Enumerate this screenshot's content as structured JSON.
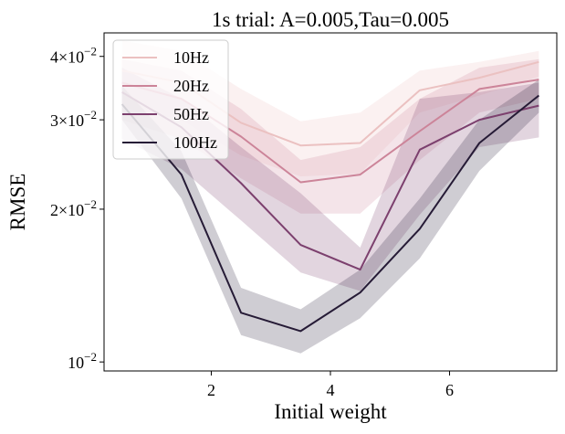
{
  "chart_data": {
    "type": "line",
    "title": "1s trial:     A=0.005,Tau=0.005",
    "xlabel": "Initial weight",
    "ylabel": "RMSE",
    "xlim": [
      0.2,
      7.8
    ],
    "ylim": [
      0.0096,
      0.0445
    ],
    "yscale": "log",
    "x_ticks": [
      2,
      4,
      6
    ],
    "x_tick_labels": [
      "2",
      "4",
      "6"
    ],
    "y_ticks": [
      {
        "value": 0.01,
        "mant": "10",
        "exp": "−2"
      },
      {
        "value": 0.02,
        "mant": "2×10",
        "exp": "−2"
      },
      {
        "value": 0.03,
        "mant": "3×10",
        "exp": "−2"
      },
      {
        "value": 0.04,
        "mant": "4×10",
        "exp": "−2"
      }
    ],
    "legend_position": "top-left",
    "x": [
      0.5,
      1.5,
      2.5,
      3.5,
      4.5,
      5.5,
      6.5,
      7.5
    ],
    "series": [
      {
        "name": "10Hz",
        "color": "#ebc1c1",
        "values": [
          0.0375,
          0.0355,
          0.0296,
          0.0267,
          0.027,
          0.0343,
          0.0363,
          0.039
        ],
        "lower": [
          0.0318,
          0.03,
          0.0255,
          0.0232,
          0.0235,
          0.031,
          0.0335,
          0.0365
        ],
        "upper": [
          0.043,
          0.041,
          0.0345,
          0.0298,
          0.031,
          0.0375,
          0.039,
          0.041
        ]
      },
      {
        "name": "20Hz",
        "color": "#cc8499",
        "values": [
          0.0355,
          0.033,
          0.0278,
          0.0226,
          0.0234,
          0.0285,
          0.0345,
          0.036
        ],
        "lower": [
          0.03,
          0.0275,
          0.023,
          0.0196,
          0.0196,
          0.025,
          0.031,
          0.033
        ],
        "upper": [
          0.0395,
          0.0375,
          0.0315,
          0.025,
          0.0265,
          0.033,
          0.038,
          0.0395
        ]
      },
      {
        "name": "50Hz",
        "color": "#7c406e",
        "values": [
          0.034,
          0.029,
          0.0225,
          0.017,
          0.0152,
          0.0262,
          0.03,
          0.032
        ],
        "lower": [
          0.0275,
          0.024,
          0.019,
          0.015,
          0.0138,
          0.0195,
          0.0265,
          0.0277
        ],
        "upper": [
          0.038,
          0.033,
          0.0265,
          0.0215,
          0.0168,
          0.033,
          0.034,
          0.0355
        ]
      },
      {
        "name": "100Hz",
        "color": "#261b36",
        "values": [
          0.0322,
          0.0234,
          0.0125,
          0.0115,
          0.0137,
          0.0183,
          0.027,
          0.0335
        ],
        "lower": [
          0.03,
          0.021,
          0.0113,
          0.0104,
          0.0122,
          0.016,
          0.0238,
          0.031
        ],
        "upper": [
          0.035,
          0.026,
          0.014,
          0.0127,
          0.0152,
          0.021,
          0.03,
          0.036
        ]
      }
    ]
  }
}
